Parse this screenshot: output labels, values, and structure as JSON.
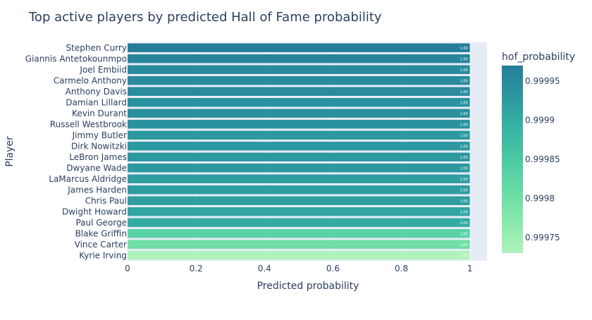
{
  "chart_data": {
    "type": "bar",
    "orientation": "horizontal",
    "title": "Top active players by predicted Hall of Fame probability",
    "xlabel": "Predicted probability",
    "ylabel": "Player",
    "xlim": [
      0,
      1.05
    ],
    "x_ticks": [
      "0",
      "0.2",
      "0.4",
      "0.6",
      "0.8",
      "1"
    ],
    "grid": true,
    "categories": [
      "Stephen Curry",
      "Giannis Antetokounmpo",
      "Joel Embiid",
      "Carmelo Anthony",
      "Anthony Davis",
      "Damian Lillard",
      "Kevin Durant",
      "Russell Westbrook",
      "Jimmy Butler",
      "Dirk Nowitzki",
      "LeBron James",
      "Dwyane Wade",
      "LaMarcus Aldridge",
      "James Harden",
      "Chris Paul",
      "Dwight Howard",
      "Paul George",
      "Blake Griffin",
      "Vince Carter",
      "Kyrie Irving"
    ],
    "values": [
      0.99997,
      0.99996,
      0.99995,
      0.99995,
      0.99995,
      0.99994,
      0.99994,
      0.99994,
      0.99993,
      0.99993,
      0.99993,
      0.99993,
      0.99992,
      0.99992,
      0.99992,
      0.99991,
      0.9999,
      0.99983,
      0.9998,
      0.99973
    ],
    "data_labels": [
      "1.00",
      "1.00",
      "1.00",
      "1.00",
      "1.00",
      "1.00",
      "1.00",
      "1.00",
      "1.00",
      "1.00",
      "1.00",
      "1.00",
      "1.00",
      "1.00",
      "1.00",
      "1.00",
      "1.00",
      "1.00",
      "1.00",
      "1.00"
    ],
    "colorbar": {
      "title": "hof_probability",
      "range": [
        0.99973,
        0.99997
      ],
      "ticks": [
        0.99975,
        0.9998,
        0.99985,
        0.9999,
        0.99995
      ],
      "tick_labels": [
        "0.99975",
        "0.9998",
        "0.99985",
        "0.9999",
        "0.99995"
      ],
      "colorscale": [
        "#b0f2bc",
        "#89e8ac",
        "#67dba5",
        "#4cc8a3",
        "#38b2a3",
        "#2c98a0",
        "#257d98"
      ]
    },
    "plot_bgcolor": "#e5ecf6"
  }
}
